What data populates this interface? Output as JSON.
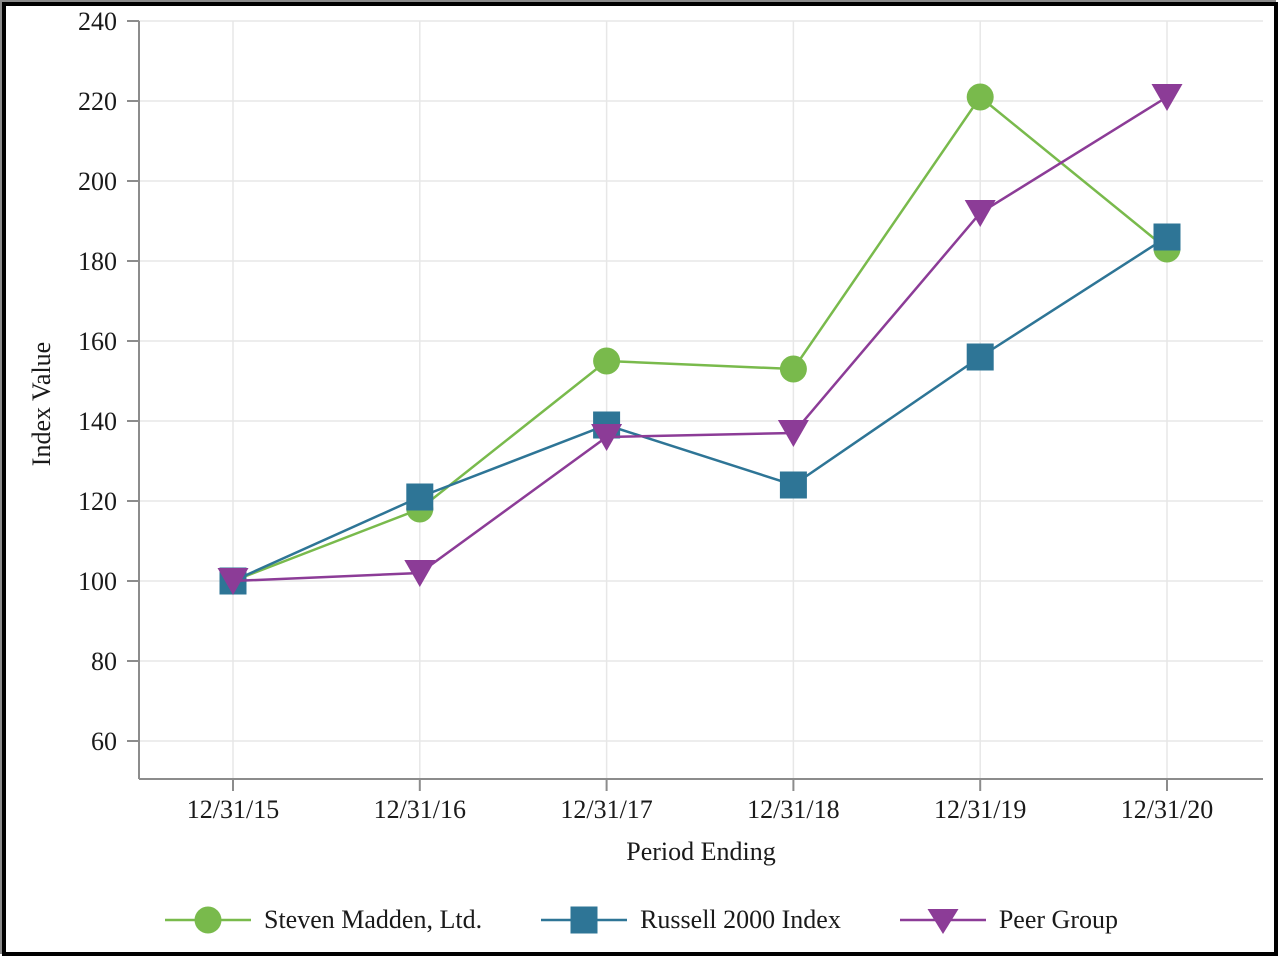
{
  "chart_data": {
    "type": "line",
    "title": "",
    "xlabel": "Period Ending",
    "ylabel": "Index Value",
    "categories": [
      "12/31/15",
      "12/31/16",
      "12/31/17",
      "12/31/18",
      "12/31/19",
      "12/31/20"
    ],
    "series": [
      {
        "name": "Steven Madden, Ltd.",
        "marker": "circle",
        "color": "#79BA4C",
        "values": [
          100,
          118,
          155,
          153,
          221,
          183
        ]
      },
      {
        "name": "Russell 2000 Index",
        "marker": "square",
        "color": "#2E7596",
        "values": [
          100,
          121,
          139,
          124,
          156,
          186
        ]
      },
      {
        "name": "Peer Group",
        "marker": "triangle-down",
        "color": "#8C3C97",
        "values": [
          100,
          102,
          136,
          137,
          192,
          221
        ]
      }
    ],
    "yticks": [
      60,
      80,
      100,
      120,
      140,
      160,
      180,
      200,
      220,
      240
    ],
    "ylim": [
      49,
      240
    ],
    "grid": true,
    "legend_position": "bottom",
    "axis_color": "#8c8c8c",
    "gridline_color": "#e7e7e7",
    "text_color": "#1a1a1a"
  }
}
